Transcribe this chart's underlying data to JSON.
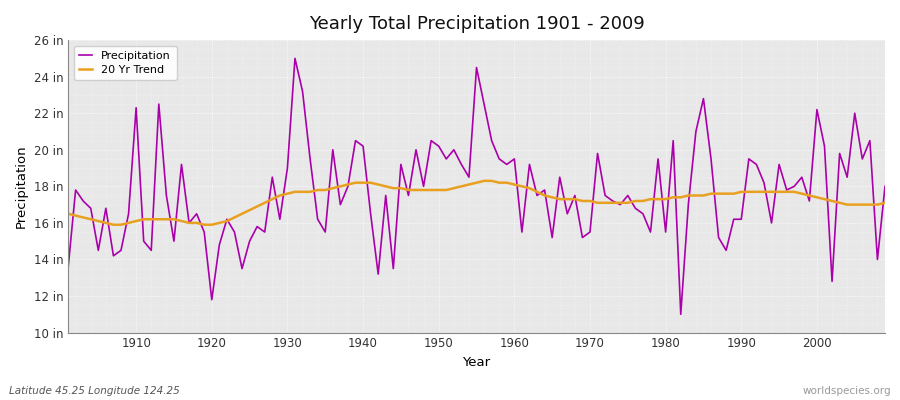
{
  "title": "Yearly Total Precipitation 1901 - 2009",
  "ylabel": "Precipitation",
  "xlabel": "Year",
  "ylim": [
    10,
    26
  ],
  "yticks": [
    10,
    12,
    14,
    16,
    18,
    20,
    22,
    24,
    26
  ],
  "ytick_labels": [
    "10 in",
    "12 in",
    "14 in",
    "16 in",
    "18 in",
    "20 in",
    "22 in",
    "24 in",
    "26 in"
  ],
  "xlim": [
    1901,
    2009
  ],
  "xticks": [
    1910,
    1920,
    1930,
    1940,
    1950,
    1960,
    1970,
    1980,
    1990,
    2000
  ],
  "precip_color": "#aa00aa",
  "trend_color": "#e8a020",
  "fig_bg_color": "#ffffff",
  "plot_bg_color": "#e8e8e8",
  "title_fontsize": 14,
  "subtitle_left": "Latitude 45.25 Longitude 124.25",
  "subtitle_right": "worldspecies.org",
  "legend_labels": [
    "Precipitation",
    "20 Yr Trend"
  ],
  "years": [
    1901,
    1902,
    1903,
    1904,
    1905,
    1906,
    1907,
    1908,
    1909,
    1910,
    1911,
    1912,
    1913,
    1914,
    1915,
    1916,
    1917,
    1918,
    1919,
    1920,
    1921,
    1922,
    1923,
    1924,
    1925,
    1926,
    1927,
    1928,
    1929,
    1930,
    1931,
    1932,
    1933,
    1934,
    1935,
    1936,
    1937,
    1938,
    1939,
    1940,
    1941,
    1942,
    1943,
    1944,
    1945,
    1946,
    1947,
    1948,
    1949,
    1950,
    1951,
    1952,
    1953,
    1954,
    1955,
    1956,
    1957,
    1958,
    1959,
    1960,
    1961,
    1962,
    1963,
    1964,
    1965,
    1966,
    1967,
    1968,
    1969,
    1970,
    1971,
    1972,
    1973,
    1974,
    1975,
    1976,
    1977,
    1978,
    1979,
    1980,
    1981,
    1982,
    1983,
    1984,
    1985,
    1986,
    1987,
    1988,
    1989,
    1990,
    1991,
    1992,
    1993,
    1994,
    1995,
    1996,
    1997,
    1998,
    1999,
    2000,
    2001,
    2002,
    2003,
    2004,
    2005,
    2006,
    2007,
    2008,
    2009
  ],
  "precipitation": [
    13.5,
    17.8,
    17.2,
    16.8,
    14.5,
    16.8,
    14.2,
    14.5,
    16.5,
    22.3,
    15.0,
    14.5,
    22.5,
    17.5,
    15.0,
    19.2,
    16.0,
    16.5,
    15.5,
    11.8,
    14.8,
    16.2,
    15.5,
    13.5,
    15.0,
    15.8,
    15.5,
    18.5,
    16.2,
    19.0,
    25.0,
    23.2,
    19.5,
    16.2,
    15.5,
    20.0,
    17.0,
    18.0,
    20.5,
    20.2,
    16.5,
    13.2,
    17.5,
    13.5,
    19.2,
    17.5,
    20.0,
    18.0,
    20.5,
    20.2,
    19.5,
    20.0,
    19.2,
    18.5,
    24.5,
    22.5,
    20.5,
    19.5,
    19.2,
    19.5,
    15.5,
    19.2,
    17.5,
    17.8,
    15.2,
    18.5,
    16.5,
    17.5,
    15.2,
    15.5,
    19.8,
    17.5,
    17.2,
    17.0,
    17.5,
    16.8,
    16.5,
    15.5,
    19.5,
    15.5,
    20.5,
    11.0,
    17.0,
    21.0,
    22.8,
    19.5,
    15.2,
    14.5,
    16.2,
    16.2,
    19.5,
    19.2,
    18.2,
    16.0,
    19.2,
    17.8,
    18.0,
    18.5,
    17.2,
    22.2,
    20.2,
    12.8,
    19.8,
    18.5,
    22.0,
    19.5,
    20.5,
    14.0,
    18.0
  ],
  "trend": [
    16.5,
    16.4,
    16.3,
    16.2,
    16.1,
    16.0,
    15.9,
    15.9,
    16.0,
    16.1,
    16.2,
    16.2,
    16.2,
    16.2,
    16.2,
    16.1,
    16.0,
    16.0,
    15.9,
    15.9,
    16.0,
    16.1,
    16.3,
    16.5,
    16.7,
    16.9,
    17.1,
    17.3,
    17.5,
    17.6,
    17.7,
    17.7,
    17.7,
    17.8,
    17.8,
    17.9,
    18.0,
    18.1,
    18.2,
    18.2,
    18.2,
    18.1,
    18.0,
    17.9,
    17.9,
    17.8,
    17.8,
    17.8,
    17.8,
    17.8,
    17.8,
    17.9,
    18.0,
    18.1,
    18.2,
    18.3,
    18.3,
    18.2,
    18.2,
    18.1,
    18.0,
    17.9,
    17.7,
    17.5,
    17.4,
    17.3,
    17.3,
    17.3,
    17.2,
    17.2,
    17.1,
    17.1,
    17.1,
    17.1,
    17.1,
    17.2,
    17.2,
    17.3,
    17.3,
    17.3,
    17.4,
    17.4,
    17.5,
    17.5,
    17.5,
    17.6,
    17.6,
    17.6,
    17.6,
    17.7,
    17.7,
    17.7,
    17.7,
    17.7,
    17.7,
    17.7,
    17.7,
    17.6,
    17.5,
    17.4,
    17.3,
    17.2,
    17.1,
    17.0,
    17.0,
    17.0,
    17.0,
    17.0,
    17.1
  ]
}
